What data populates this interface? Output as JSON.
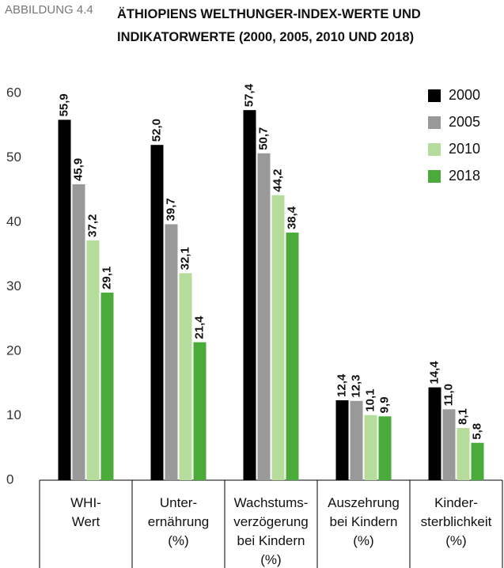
{
  "chart_data": {
    "type": "bar",
    "figure_label": "ABBILDUNG 4.4",
    "title": "ÄTHIOPIENS WELTHUNGER-INDEX-WERTE UND\nINDIKATORWERTE (2000, 2005, 2010 UND 2018)",
    "categories": [
      "WHI-\nWert",
      "Unter-\nernährung\n(%)",
      "Wachstums-\nverzögerung\nbei Kindern\n(%)",
      "Auszehrung\nbei Kindern\n(%)",
      "Kinder-\nsterblichkeit\n(%)"
    ],
    "series": [
      {
        "name": "2000",
        "color": "#000000",
        "values": [
          55.9,
          52.0,
          57.4,
          12.4,
          14.4
        ],
        "value_labels": [
          "55,9",
          "52,0",
          "57,4",
          "12,4",
          "14,4"
        ]
      },
      {
        "name": "2005",
        "color": "#999999",
        "values": [
          45.9,
          39.7,
          50.7,
          12.3,
          11.0
        ],
        "value_labels": [
          "45,9",
          "39,7",
          "50,7",
          "12,3",
          "11,0"
        ]
      },
      {
        "name": "2010",
        "color": "#b6dc9c",
        "values": [
          37.2,
          32.1,
          44.2,
          10.1,
          8.1
        ],
        "value_labels": [
          "37,2",
          "32,1",
          "44,2",
          "10,1",
          "8,1"
        ]
      },
      {
        "name": "2018",
        "color": "#4aab3a",
        "values": [
          29.1,
          21.4,
          38.4,
          9.9,
          5.8
        ],
        "value_labels": [
          "29,1",
          "21,4",
          "38,4",
          "9,9",
          "5,8"
        ]
      }
    ],
    "ylim": [
      0,
      60
    ],
    "yticks": [
      0,
      10,
      20,
      30,
      40,
      50,
      60
    ],
    "grid": false,
    "legend": "upper right"
  }
}
